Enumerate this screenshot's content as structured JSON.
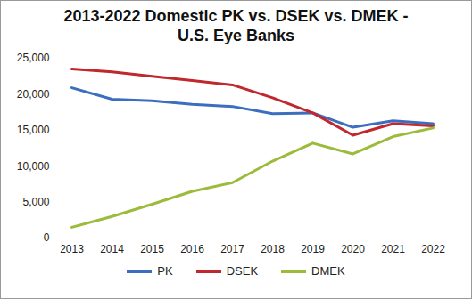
{
  "chart_data": {
    "type": "line",
    "title": "2013-2022 Domestic PK vs. DSEK vs. DMEK - U.S. Eye Banks",
    "categories": [
      "2013",
      "2014",
      "2015",
      "2016",
      "2017",
      "2018",
      "2019",
      "2020",
      "2021",
      "2022"
    ],
    "series": [
      {
        "name": "PK",
        "color": "#3c6ec0",
        "values": [
          20900,
          19300,
          19100,
          18600,
          18300,
          17300,
          17400,
          15400,
          16300,
          15900
        ]
      },
      {
        "name": "DSEK",
        "color": "#c0282d",
        "values": [
          23500,
          23100,
          22500,
          21900,
          21300,
          19500,
          17400,
          14300,
          15900,
          15600
        ]
      },
      {
        "name": "DMEK",
        "color": "#9bbb3a",
        "values": [
          1500,
          3000,
          4700,
          6500,
          7700,
          10700,
          13200,
          11700,
          14100,
          15300
        ]
      }
    ],
    "ylim": [
      0,
      25000
    ],
    "yticks": [
      0,
      {
        "value": 5000,
        "label": "5,000"
      },
      {
        "value": 10000,
        "label": "10,000"
      },
      {
        "value": 15000,
        "label": "15,000"
      },
      {
        "value": 20000,
        "label": "20,000"
      },
      {
        "value": 25000,
        "label": "25,000"
      }
    ],
    "grid": false,
    "legend": "bottom"
  }
}
